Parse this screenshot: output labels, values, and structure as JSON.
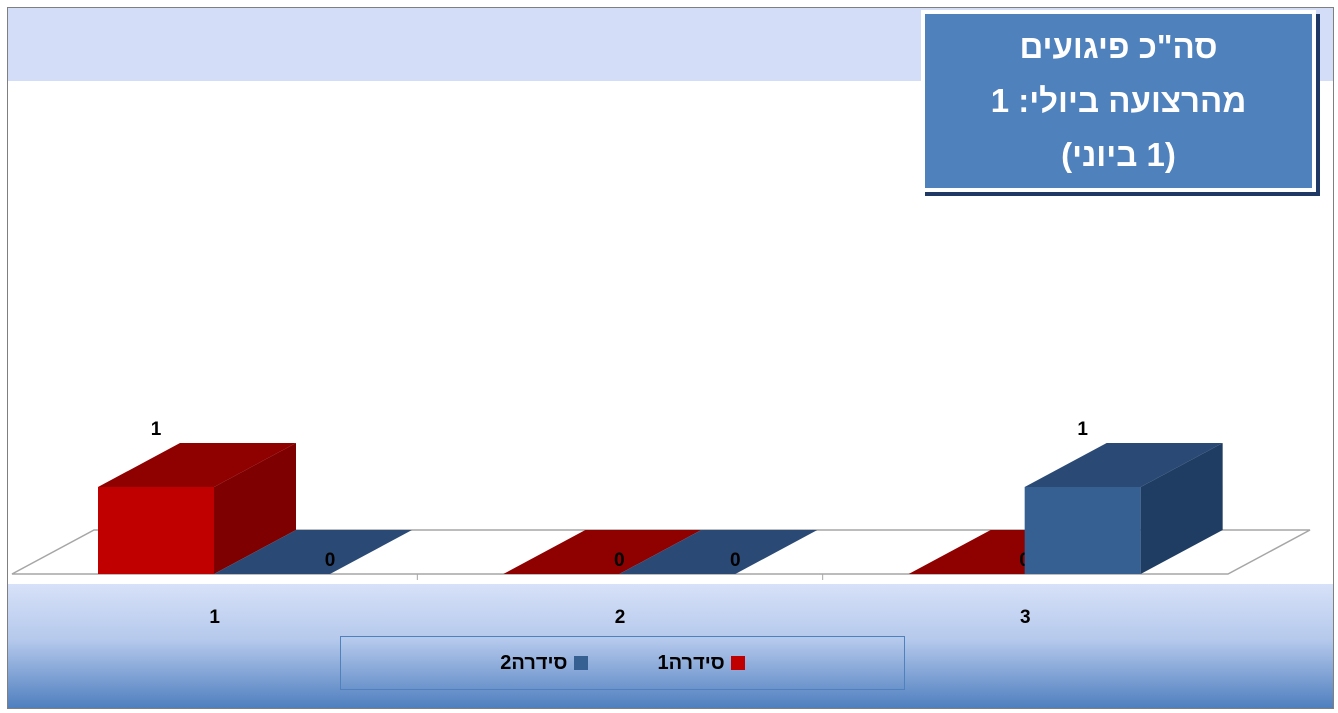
{
  "chart_data": {
    "type": "bar",
    "title": [
      "סה\"כ פיגועים",
      "מהרצועה ביולי: 1",
      "(1 ביוני)"
    ],
    "categories": [
      "1",
      "2",
      "3"
    ],
    "series": [
      {
        "name": "סידרה1",
        "values": [
          1,
          0,
          0
        ],
        "color": "#c00000",
        "side_color": "#7f0000",
        "top_color": "#8f0000"
      },
      {
        "name": "סידרה2",
        "values": [
          0,
          0,
          1
        ],
        "color": "#376092",
        "side_color": "#1f3d63",
        "top_color": "#2a4a75"
      }
    ],
    "ylim": [
      0,
      1
    ],
    "grid": false,
    "legend_position": "bottom"
  }
}
